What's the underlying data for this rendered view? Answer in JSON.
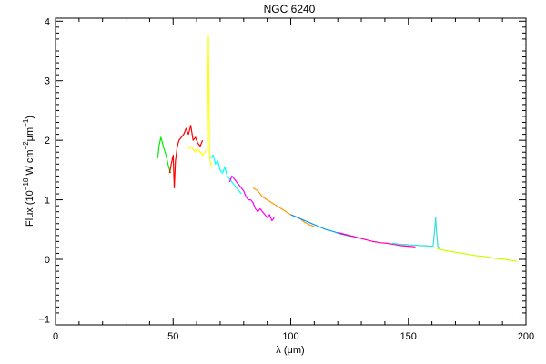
{
  "chart_data": {
    "type": "line",
    "title": "NGC 6240",
    "xlabel_prefix": "λ (",
    "xlabel_mu": "μ",
    "xlabel_suffix": "m)",
    "ylabel_prefix": "Flux (10",
    "ylabel_exp1": "−18",
    "ylabel_mid": " W cm",
    "ylabel_exp2": "−2",
    "ylabel_mu": "μ",
    "ylabel_m": "m",
    "ylabel_exp3": "−1",
    "ylabel_suffix": ")",
    "xlim": [
      0,
      200
    ],
    "ylim": [
      -1.1,
      4.05
    ],
    "x_ticks": [
      0,
      50,
      100,
      150,
      200
    ],
    "y_ticks": [
      -1,
      0,
      1,
      2,
      3,
      4
    ],
    "grid": false,
    "series": [
      {
        "color": "#00ee00",
        "points": [
          [
            43.5,
            1.7
          ],
          [
            44,
            1.9
          ],
          [
            44.8,
            2.05
          ],
          [
            45.5,
            1.95
          ],
          [
            46.2,
            1.85
          ],
          [
            47,
            1.75
          ],
          [
            47.8,
            1.6
          ],
          [
            48.5,
            1.5
          ],
          [
            49,
            1.45
          ]
        ]
      },
      {
        "color": "#ff0000",
        "points": [
          [
            48.5,
            1.45
          ],
          [
            49.2,
            1.6
          ],
          [
            50,
            1.75
          ],
          [
            50.5,
            1.2
          ],
          [
            51,
            1.65
          ],
          [
            51.8,
            1.9
          ],
          [
            52.5,
            2.0
          ],
          [
            53.5,
            2.05
          ],
          [
            54.5,
            2.1
          ],
          [
            55.5,
            2.2
          ],
          [
            56.5,
            2.1
          ],
          [
            57.5,
            2.25
          ],
          [
            58.5,
            2.0
          ],
          [
            59.5,
            2.05
          ],
          [
            60.5,
            1.95
          ],
          [
            61.5,
            1.9
          ],
          [
            62.5,
            2.0
          ]
        ]
      },
      {
        "color": "#ffff00",
        "points": [
          [
            56.5,
            1.85
          ],
          [
            57.5,
            1.9
          ],
          [
            58.5,
            1.85
          ],
          [
            59.5,
            1.8
          ],
          [
            60.5,
            1.85
          ],
          [
            61.5,
            1.8
          ],
          [
            62.5,
            1.75
          ],
          [
            63.5,
            1.8
          ],
          [
            64.5,
            1.85
          ],
          [
            65,
            3.75
          ],
          [
            65.5,
            1.75
          ],
          [
            66,
            1.6
          ],
          [
            66.5,
            1.55
          ]
        ]
      },
      {
        "color": "#00ffff",
        "points": [
          [
            66,
            1.7
          ],
          [
            67,
            1.75
          ],
          [
            68,
            1.6
          ],
          [
            69,
            1.65
          ],
          [
            70,
            1.5
          ],
          [
            71,
            1.45
          ],
          [
            72,
            1.55
          ],
          [
            73,
            1.4
          ],
          [
            74,
            1.35
          ],
          [
            75,
            1.3
          ],
          [
            76,
            1.25
          ],
          [
            77,
            1.2
          ],
          [
            78,
            1.15
          ],
          [
            79,
            1.1
          ]
        ]
      },
      {
        "color": "#ff00ff",
        "points": [
          [
            74,
            1.3
          ],
          [
            75,
            1.4
          ],
          [
            76,
            1.35
          ],
          [
            77,
            1.3
          ],
          [
            78,
            1.25
          ],
          [
            79,
            1.2
          ],
          [
            80,
            1.15
          ],
          [
            81,
            1.05
          ],
          [
            82,
            1.0
          ],
          [
            83,
            1.0
          ],
          [
            84,
            0.95
          ],
          [
            85,
            0.85
          ],
          [
            86,
            0.8
          ],
          [
            87,
            0.85
          ],
          [
            88,
            0.8
          ],
          [
            89,
            0.75
          ],
          [
            90,
            0.7
          ],
          [
            91,
            0.75
          ],
          [
            92,
            0.65
          ],
          [
            93,
            0.7
          ]
        ]
      },
      {
        "color": "#ff9900",
        "points": [
          [
            84,
            1.2
          ],
          [
            86,
            1.15
          ],
          [
            88,
            1.05
          ],
          [
            90,
            1.0
          ],
          [
            92,
            0.95
          ],
          [
            94,
            0.9
          ],
          [
            96,
            0.85
          ],
          [
            98,
            0.8
          ],
          [
            100,
            0.75
          ],
          [
            102,
            0.72
          ],
          [
            104,
            0.68
          ],
          [
            106,
            0.62
          ],
          [
            108,
            0.58
          ],
          [
            110,
            0.55
          ]
        ]
      },
      {
        "color": "#0099ff",
        "points": [
          [
            100,
            0.75
          ],
          [
            103,
            0.7
          ],
          [
            106,
            0.65
          ],
          [
            109,
            0.6
          ],
          [
            112,
            0.55
          ],
          [
            115,
            0.5
          ],
          [
            118,
            0.47
          ],
          [
            121,
            0.43
          ],
          [
            124,
            0.4
          ],
          [
            127,
            0.38
          ]
        ]
      },
      {
        "color": "#ff00aa",
        "points": [
          [
            120,
            0.45
          ],
          [
            123,
            0.42
          ],
          [
            126,
            0.39
          ],
          [
            129,
            0.36
          ],
          [
            132,
            0.33
          ],
          [
            135,
            0.3
          ],
          [
            138,
            0.28
          ],
          [
            141,
            0.27
          ],
          [
            144,
            0.25
          ],
          [
            147,
            0.23
          ],
          [
            150,
            0.22
          ],
          [
            153,
            0.21
          ]
        ]
      },
      {
        "color": "#33dddd",
        "points": [
          [
            143,
            0.27
          ],
          [
            145,
            0.26
          ],
          [
            147,
            0.25
          ],
          [
            149,
            0.25
          ],
          [
            151,
            0.24
          ],
          [
            153,
            0.24
          ],
          [
            155,
            0.23
          ],
          [
            157,
            0.23
          ],
          [
            159,
            0.22
          ],
          [
            160.5,
            0.22
          ],
          [
            161.2,
            0.5
          ],
          [
            161.6,
            0.7
          ],
          [
            162,
            0.45
          ],
          [
            162.5,
            0.22
          ],
          [
            163,
            0.2
          ]
        ]
      },
      {
        "color": "#ccff00",
        "points": [
          [
            161,
            0.2
          ],
          [
            164,
            0.16
          ],
          [
            167,
            0.14
          ],
          [
            170,
            0.12
          ],
          [
            173,
            0.1
          ],
          [
            176,
            0.08
          ],
          [
            179,
            0.06
          ],
          [
            182,
            0.05
          ],
          [
            185,
            0.03
          ],
          [
            188,
            0.01
          ],
          [
            191,
            0.0
          ],
          [
            194,
            -0.02
          ],
          [
            196,
            -0.03
          ]
        ]
      }
    ]
  }
}
